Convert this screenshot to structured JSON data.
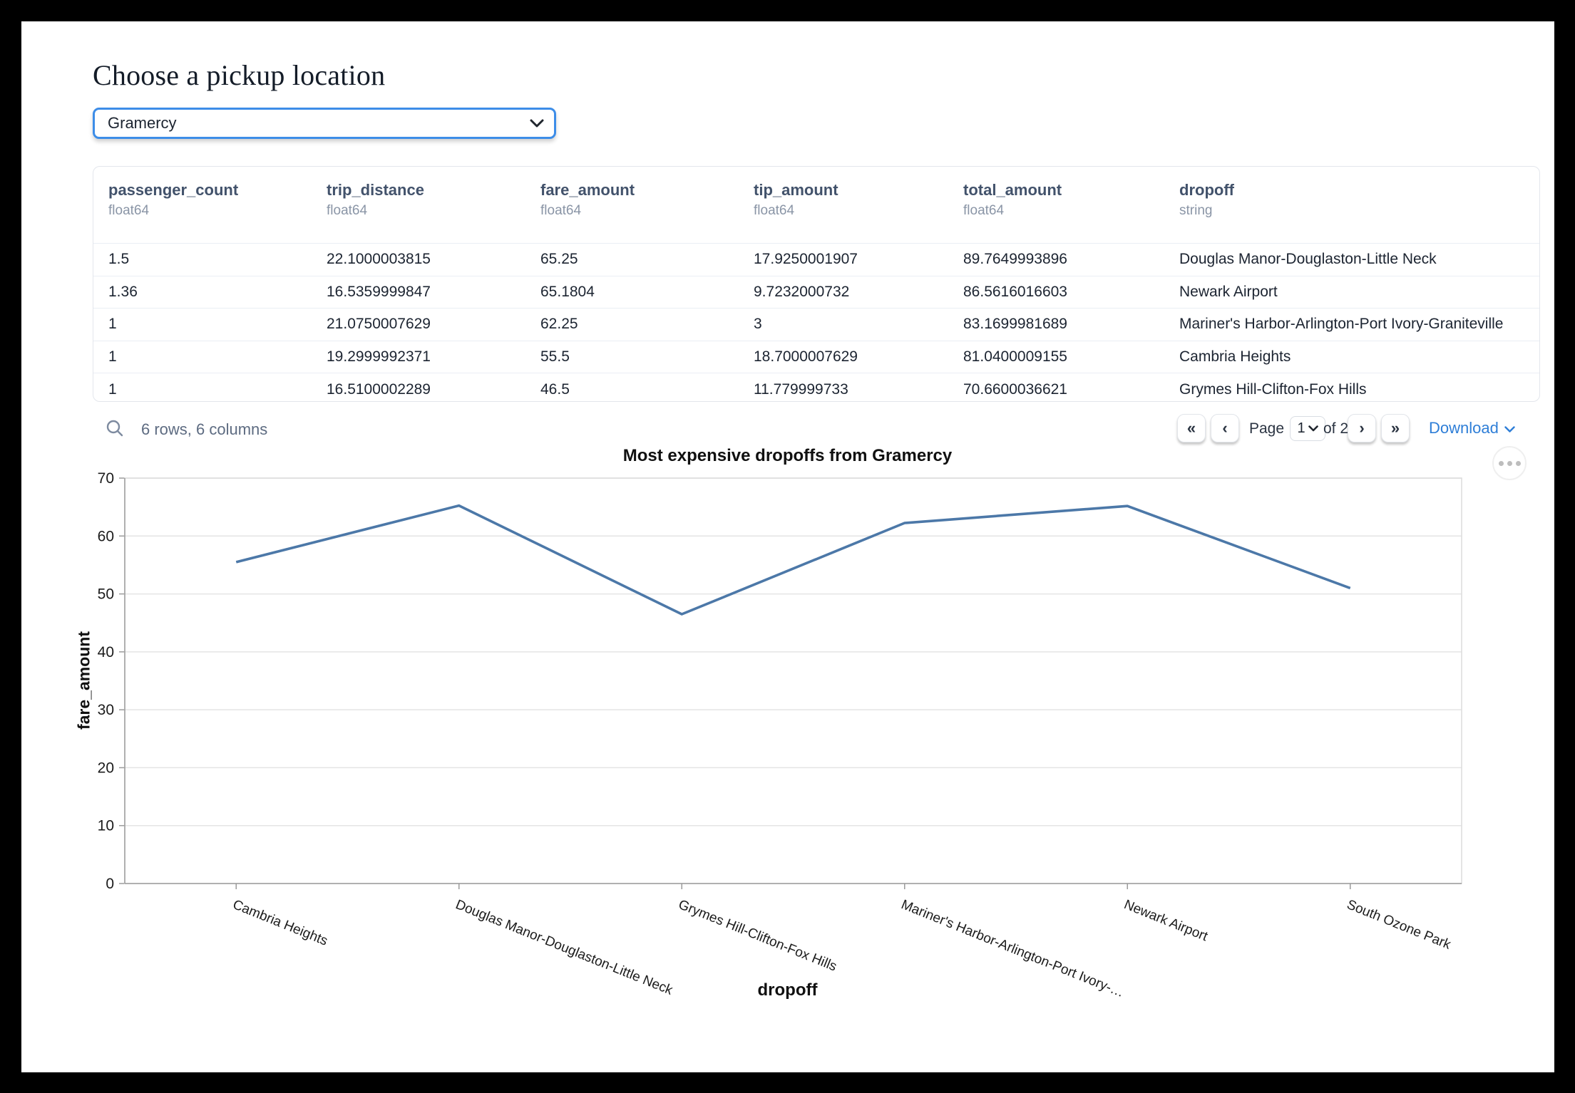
{
  "page": {
    "title": "Choose a pickup location"
  },
  "pickup_select": {
    "value": "Gramercy",
    "chevron_icon": "chevron-down"
  },
  "table": {
    "columns": [
      {
        "name": "passenger_count",
        "type": "float64"
      },
      {
        "name": "trip_distance",
        "type": "float64"
      },
      {
        "name": "fare_amount",
        "type": "float64"
      },
      {
        "name": "tip_amount",
        "type": "float64"
      },
      {
        "name": "total_amount",
        "type": "float64"
      },
      {
        "name": "dropoff",
        "type": "string"
      }
    ],
    "rows": [
      [
        "1.5",
        "22.1000003815",
        "65.25",
        "17.9250001907",
        "89.7649993896",
        "Douglas Manor-Douglaston-Little Neck"
      ],
      [
        "1.36",
        "16.5359999847",
        "65.1804",
        "9.7232000732",
        "86.5616016603",
        "Newark Airport"
      ],
      [
        "1",
        "21.0750007629",
        "62.25",
        "3",
        "83.1699981689",
        "Mariner's Harbor-Arlington-Port Ivory-Graniteville"
      ],
      [
        "1",
        "19.2999992371",
        "55.5",
        "18.7000007629",
        "81.0400009155",
        "Cambria Heights"
      ],
      [
        "1",
        "16.5100002289",
        "46.5",
        "11.779999733",
        "70.6600036621",
        "Grymes Hill-Clifton-Fox Hills"
      ]
    ]
  },
  "table_footer": {
    "search_icon": "magnifier",
    "summary": "6 rows, 6 columns",
    "first_icon": "«",
    "prev_icon": "‹",
    "next_icon": "›",
    "last_icon": "»",
    "page_label": "Page",
    "page_value": "1",
    "of_label": "of 2",
    "download_label": "Download"
  },
  "chart_data": {
    "type": "line",
    "title": "Most expensive dropoffs from Gramercy",
    "xlabel": "dropoff",
    "ylabel": "fare_amount",
    "categories": [
      "Cambria Heights",
      "Douglas Manor-Douglaston-Little Neck",
      "Grymes Hill-Clifton-Fox Hills",
      "Mariner's Harbor-Arlington-Port Ivory-Graniteville",
      "Newark Airport",
      "South Ozone Park"
    ],
    "tick_labels": [
      "Cambria Heights",
      "Douglas Manor-Douglaston-Little Neck",
      "Grymes Hill-Clifton-Fox Hills",
      "Mariner's Harbor-Arlington-Port Ivory-…",
      "Newark Airport",
      "South Ozone Park"
    ],
    "values": [
      55.5,
      65.25,
      46.5,
      62.25,
      65.1804,
      51
    ],
    "ylim": [
      0,
      70
    ],
    "ytick_step": 10,
    "grid": true,
    "legend": "none",
    "line_color": "#4c78a8",
    "menu_icon": "ellipsis-menu"
  },
  "colors": {
    "select_border": "#3d8de8",
    "link_blue": "#2e7ed7",
    "header_text": "#42526b",
    "muted_text": "#8a95a6",
    "grid_line": "#e4e4e4",
    "axis_line": "#9b9b9b"
  }
}
